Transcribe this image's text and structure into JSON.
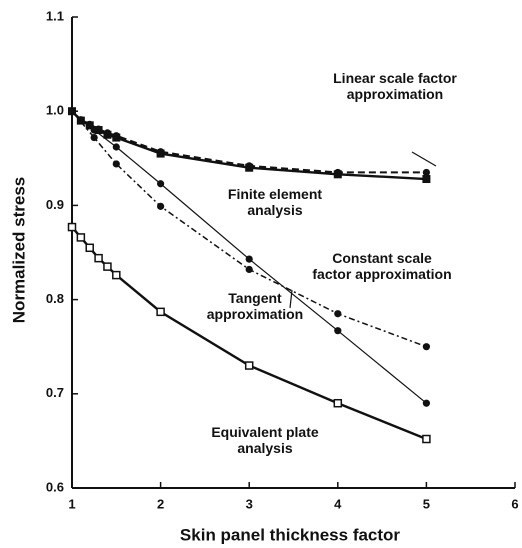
{
  "chart_data": {
    "type": "line",
    "xlabel": "Skin panel thickness factor",
    "ylabel": "Normalized stress",
    "xlim": [
      1,
      6
    ],
    "ylim": [
      0.6,
      1.1
    ],
    "xticks": [
      1,
      2,
      3,
      4,
      5,
      6
    ],
    "yticks": [
      0.6,
      0.7,
      0.8,
      0.9,
      {
        "value": 1,
        "label": "1.0"
      },
      1.1
    ],
    "series": [
      {
        "name": "Finite element analysis",
        "color": "#111111",
        "line": "solid",
        "marker": "square-filled",
        "x": [
          1,
          1.1,
          1.2,
          1.3,
          1.4,
          1.5,
          2,
          3,
          4,
          5
        ],
        "values": [
          1.0,
          0.99,
          0.985,
          0.98,
          0.975,
          0.972,
          0.955,
          0.94,
          0.933,
          0.928
        ]
      },
      {
        "name": "Linear scale factor approximation",
        "color": "#111111",
        "line": "dashed",
        "marker": "circle-filled",
        "x": [
          1,
          1.1,
          1.2,
          1.3,
          1.4,
          1.5,
          2,
          3,
          4,
          5
        ],
        "values": [
          1.0,
          0.991,
          0.986,
          0.981,
          0.977,
          0.974,
          0.957,
          0.942,
          0.935,
          0.935
        ]
      },
      {
        "name": "Tangent approximation",
        "color": "#111111",
        "line": "solid-thin",
        "marker": "circle-filled",
        "x": [
          1,
          1.25,
          1.5,
          2,
          3,
          4,
          5
        ],
        "values": [
          1.0,
          0.98,
          0.962,
          0.923,
          0.843,
          0.767,
          0.69
        ]
      },
      {
        "name": "Constant scale factor approximation",
        "color": "#111111",
        "line": "dashdot",
        "marker": "circle-filled",
        "x": [
          1,
          1.25,
          1.5,
          2,
          3,
          4,
          5
        ],
        "values": [
          1.0,
          0.972,
          0.944,
          0.899,
          0.832,
          0.785,
          0.75
        ]
      },
      {
        "name": "Equivalent plate analysis",
        "color": "#111111",
        "line": "solid",
        "marker": "square-open",
        "x": [
          1,
          1.1,
          1.2,
          1.3,
          1.4,
          1.5,
          2,
          3,
          4,
          5
        ],
        "values": [
          0.877,
          0.866,
          0.855,
          0.844,
          0.835,
          0.826,
          0.787,
          0.73,
          0.69,
          0.652
        ]
      }
    ]
  }
}
